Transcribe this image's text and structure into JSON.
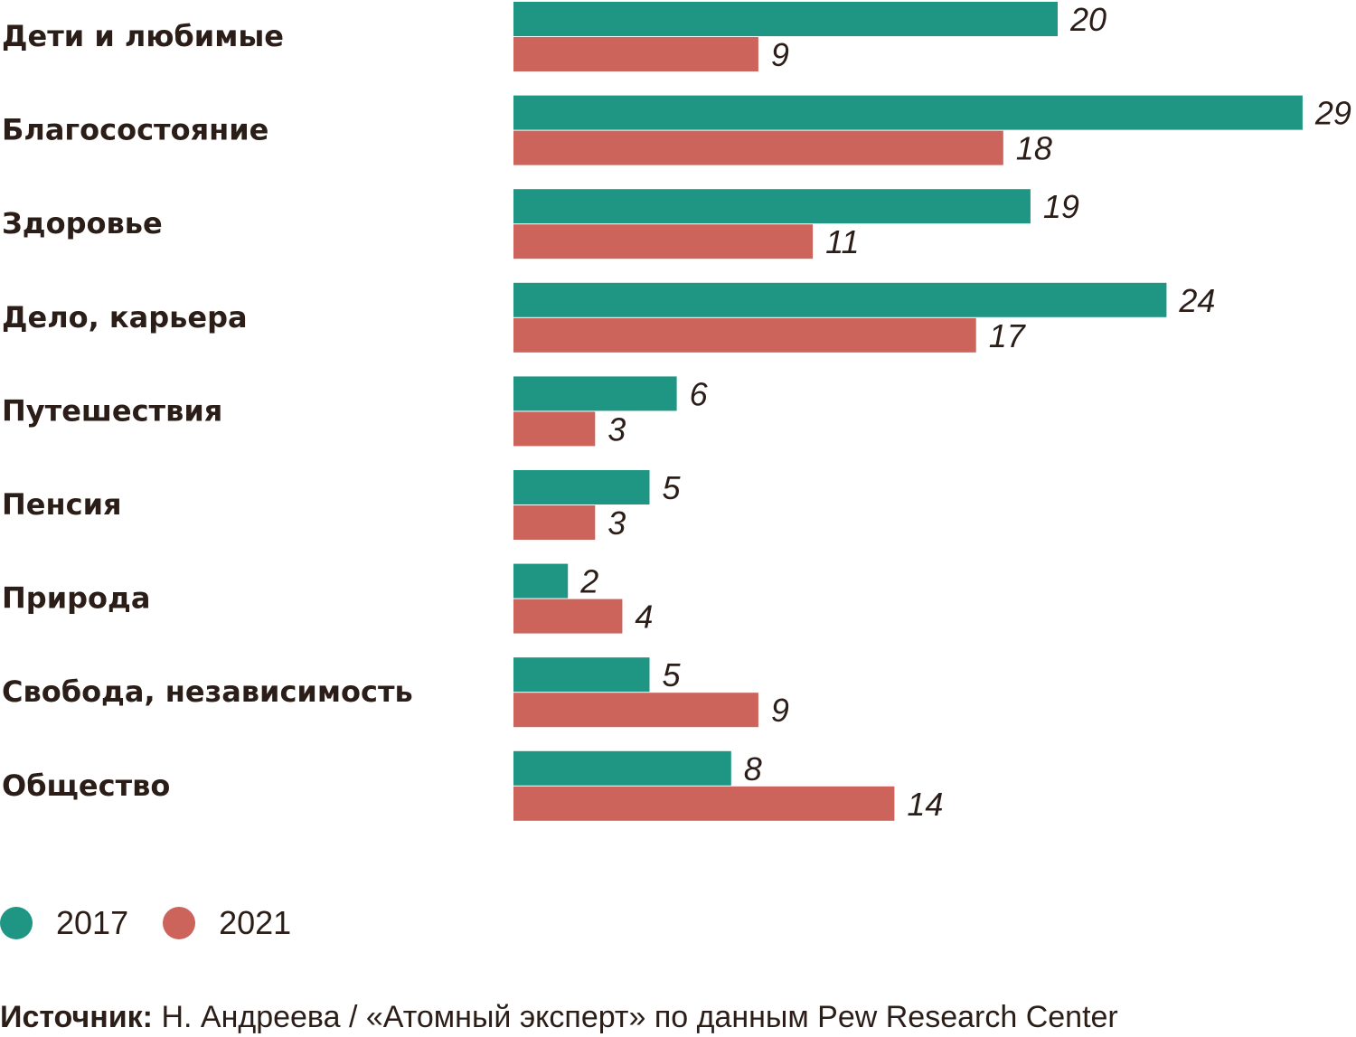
{
  "chart_data": {
    "type": "bar",
    "orientation": "horizontal",
    "categories": [
      "Дети и любимые",
      "Благосостояние",
      "Здоровье",
      "Дело, карьера",
      "Путешествия",
      "Пенсия",
      "Природа",
      "Свобода, независимость",
      "Общество"
    ],
    "series": [
      {
        "name": "2017",
        "color": "#1e9683",
        "values": [
          20,
          29,
          19,
          24,
          6,
          5,
          2,
          5,
          8
        ]
      },
      {
        "name": "2021",
        "color": "#cc645c",
        "values": [
          9,
          18,
          11,
          17,
          3,
          3,
          4,
          9,
          14
        ]
      }
    ],
    "xlim": [
      0,
      29
    ],
    "grid": false,
    "legend": "bottom-left"
  },
  "source": {
    "label": "Источник:",
    "text": "Н. Андреева / «Атомный эксперт» по данным Pew Research Center"
  }
}
